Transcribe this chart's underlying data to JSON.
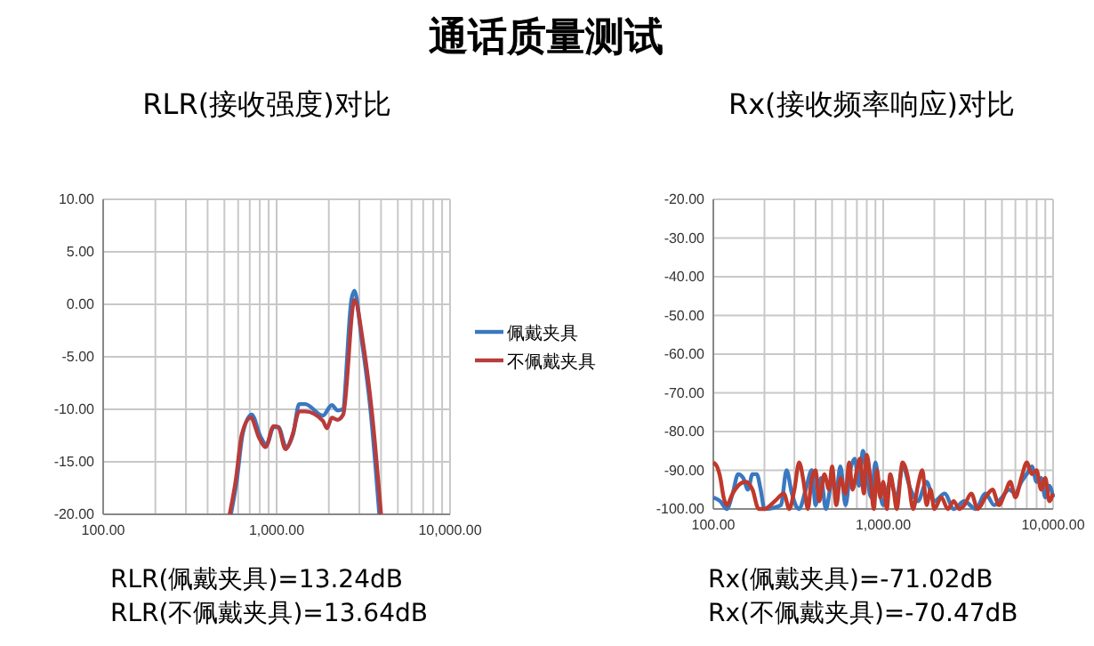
{
  "chart_data": [
    {
      "type": "line",
      "title": "通话质量测试",
      "subtitle": "RLR(接收强度)对比",
      "log": "x",
      "grid": true,
      "legend": "right",
      "marker": "none",
      "line_style": "solid",
      "xlim": [
        100,
        10000
      ],
      "xticks": [
        {
          "value": 100,
          "label": "100.00"
        },
        {
          "value": 200,
          "label": null
        },
        {
          "value": 300,
          "label": null
        },
        {
          "value": 400,
          "label": null
        },
        {
          "value": 500,
          "label": null
        },
        {
          "value": 600,
          "label": null
        },
        {
          "value": 700,
          "label": null
        },
        {
          "value": 800,
          "label": null
        },
        {
          "value": 900,
          "label": null
        },
        {
          "value": 1000,
          "label": "1,000.00"
        },
        {
          "value": 2000,
          "label": null
        },
        {
          "value": 3000,
          "label": null
        },
        {
          "value": 4000,
          "label": null
        },
        {
          "value": 5000,
          "label": null
        },
        {
          "value": 6000,
          "label": null
        },
        {
          "value": 7000,
          "label": null
        },
        {
          "value": 8000,
          "label": null
        },
        {
          "value": 9000,
          "label": null
        },
        {
          "value": 10000,
          "label": "10,000.00"
        }
      ],
      "ylim": [
        -20,
        10
      ],
      "yticks": [
        {
          "value": -20,
          "label": "-20.00"
        },
        {
          "value": -15,
          "label": "-15.00"
        },
        {
          "value": -10,
          "label": "-10.00"
        },
        {
          "value": -5,
          "label": "-5.00"
        },
        {
          "value": 0,
          "label": "0.00"
        },
        {
          "value": 5,
          "label": "5.00"
        },
        {
          "value": 10,
          "label": "10.00"
        }
      ],
      "series": [
        {
          "name": "佩戴夹具",
          "color": "#3a78c0",
          "x": [
            545,
            589,
            638,
            718,
            808,
            874,
            961,
            1023,
            1135,
            1247,
            1349,
            1459,
            1849,
            2081,
            2245,
            2399,
            2703,
            2810,
            3090,
            3475,
            3910
          ],
          "values": [
            -20,
            -16.8,
            -12.3,
            -10.5,
            -12.6,
            -13.4,
            -11.7,
            -11.7,
            -13.6,
            -12.3,
            -9.5,
            -9.5,
            -10.6,
            -9.6,
            -10.1,
            -10,
            0.5,
            1.3,
            -3.3,
            -10,
            -20
          ]
        },
        {
          "name": "不佩戴夹具",
          "color": "#b83c3c",
          "x": [
            536,
            581,
            630,
            708,
            797,
            862,
            961,
            1023,
            1125,
            1237,
            1349,
            1459,
            1849,
            1950,
            2081,
            2245,
            2420,
            2810,
            3160,
            3560,
            4000
          ],
          "values": [
            -20,
            -16.8,
            -12.4,
            -10.8,
            -12.8,
            -13.6,
            -11.6,
            -11.7,
            -13.8,
            -12.4,
            -10.2,
            -10.2,
            -11.1,
            -11.8,
            -10.8,
            -11,
            -10.5,
            0.4,
            -3.8,
            -10.6,
            -20
          ]
        }
      ],
      "annotations": [
        "RLR(佩戴夹具)=13.24dB",
        "RLR(不佩戴夹具)=13.64dB"
      ]
    },
    {
      "type": "line",
      "subtitle": "Rx(接收频率响应)对比",
      "log": "x",
      "grid": true,
      "marker": "none",
      "line_style": "solid",
      "xlim": [
        100,
        10000
      ],
      "xticks": [
        {
          "value": 100,
          "label": "100.00"
        },
        {
          "value": 200,
          "label": null
        },
        {
          "value": 300,
          "label": null
        },
        {
          "value": 400,
          "label": null
        },
        {
          "value": 500,
          "label": null
        },
        {
          "value": 600,
          "label": null
        },
        {
          "value": 700,
          "label": null
        },
        {
          "value": 800,
          "label": null
        },
        {
          "value": 900,
          "label": null
        },
        {
          "value": 1000,
          "label": "1,000.00"
        },
        {
          "value": 2000,
          "label": null
        },
        {
          "value": 3000,
          "label": null
        },
        {
          "value": 4000,
          "label": null
        },
        {
          "value": 5000,
          "label": null
        },
        {
          "value": 6000,
          "label": null
        },
        {
          "value": 7000,
          "label": null
        },
        {
          "value": 8000,
          "label": null
        },
        {
          "value": 9000,
          "label": null
        },
        {
          "value": 10000,
          "label": "10,000.00"
        }
      ],
      "ylim": [
        -100,
        -20
      ],
      "yticks": [
        {
          "value": -100,
          "label": "-100.00"
        },
        {
          "value": -90,
          "label": "-90.00"
        },
        {
          "value": -80,
          "label": "-80.00"
        },
        {
          "value": -70,
          "label": "-70.00"
        },
        {
          "value": -60,
          "label": "-60.00"
        },
        {
          "value": -50,
          "label": "-50.00"
        },
        {
          "value": -40,
          "label": "-40.00"
        },
        {
          "value": -30,
          "label": "-30.00"
        },
        {
          "value": -20,
          "label": "-20.00"
        }
      ],
      "series": [
        {
          "color": "#3a78c0",
          "x": [
            100,
            110,
            120,
            130,
            140,
            150,
            160,
            170,
            180,
            190,
            200,
            250,
            270,
            290,
            320,
            350,
            380,
            400,
            430,
            460,
            500,
            530,
            560,
            600,
            640,
            680,
            720,
            760,
            800,
            850,
            900,
            950,
            1000,
            1100,
            1200,
            1300,
            1450,
            1600,
            1800,
            2000,
            2300,
            2600,
            3000,
            3500,
            4000,
            4500,
            5000,
            5500,
            6000,
            6500,
            7000,
            7500,
            8000,
            8500,
            9000,
            9500,
            10000
          ],
          "values": [
            -97,
            -98,
            -100,
            -96,
            -91,
            -92,
            -95,
            -91,
            -91,
            -95,
            -100,
            -99,
            -90,
            -96,
            -100,
            -95,
            -90,
            -99,
            -92,
            -100,
            -93,
            -95,
            -89,
            -99,
            -90,
            -87,
            -94,
            -85,
            -91,
            -97,
            -88,
            -95,
            -99,
            -93,
            -97,
            -89,
            -95,
            -98,
            -93,
            -98,
            -96,
            -100,
            -98,
            -100,
            -96,
            -99,
            -97,
            -95,
            -96,
            -93,
            -91,
            -89,
            -93,
            -92,
            -97,
            -94,
            -97
          ]
        },
        {
          "color": "#c0392b",
          "x": [
            100,
            105,
            110,
            115,
            120,
            130,
            140,
            155,
            170,
            185,
            200,
            230,
            260,
            280,
            300,
            320,
            340,
            360,
            380,
            400,
            420,
            450,
            480,
            500,
            530,
            560,
            600,
            630,
            660,
            700,
            730,
            770,
            800,
            840,
            880,
            920,
            960,
            1000,
            1050,
            1100,
            1150,
            1200,
            1300,
            1400,
            1500,
            1600,
            1700,
            1800,
            1900,
            2000,
            2200,
            2400,
            2600,
            2800,
            3000,
            3300,
            3600,
            4000,
            4400,
            4800,
            5200,
            5600,
            6000,
            6500,
            7000,
            7500,
            8000,
            8500,
            9000,
            9500,
            10000
          ],
          "values": [
            -88,
            -89,
            -92,
            -97,
            -99,
            -96,
            -94,
            -93,
            -95,
            -100,
            -100,
            -98,
            -96,
            -100,
            -95,
            -88,
            -93,
            -100,
            -92,
            -90,
            -98,
            -91,
            -95,
            -89,
            -99,
            -92,
            -96,
            -88,
            -95,
            -90,
            -87,
            -96,
            -86,
            -92,
            -100,
            -90,
            -97,
            -93,
            -100,
            -91,
            -95,
            -100,
            -88,
            -92,
            -100,
            -94,
            -90,
            -99,
            -95,
            -100,
            -97,
            -100,
            -98,
            -100,
            -99,
            -96,
            -100,
            -97,
            -95,
            -99,
            -96,
            -93,
            -97,
            -92,
            -88,
            -91,
            -90,
            -95,
            -92,
            -98,
            -96
          ]
        }
      ],
      "annotations": [
        "Rx(佩戴夹具)=-71.02dB",
        "Rx(不佩戴夹具)=-70.47dB"
      ]
    }
  ]
}
